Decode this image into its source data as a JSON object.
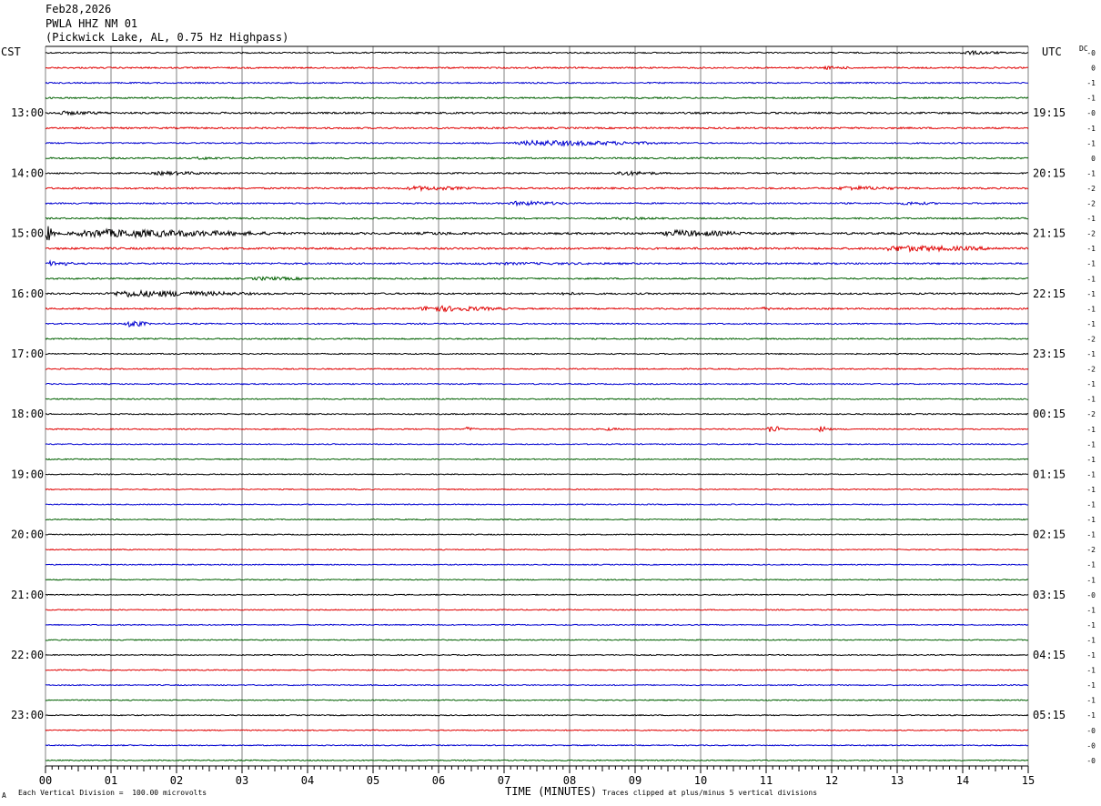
{
  "header": {
    "date": "Feb28,2026",
    "station": "PWLA HHZ NM 01",
    "location": "(Pickwick Lake, AL, 0.75 Hz Highpass)"
  },
  "left_tz": "CST",
  "right_tz": "UTC",
  "dc_label": "DC",
  "footer": {
    "left_marker": "A",
    "scale_note": "Each Vertical Division =  100.00 microvolts",
    "clip_note": "Traces clipped at plus/minus 5 vertical divisions"
  },
  "colors": {
    "trace_cycle": [
      "#000000",
      "#e00000",
      "#0000d0",
      "#006000"
    ],
    "grid": "#808080",
    "axis": "#000000"
  },
  "chart_data": {
    "type": "line",
    "xlabel": "TIME (MINUTES)",
    "xlim": [
      0,
      15
    ],
    "x_ticks": [
      "00",
      "01",
      "02",
      "03",
      "04",
      "05",
      "06",
      "07",
      "08",
      "09",
      "10",
      "11",
      "12",
      "13",
      "14",
      "15"
    ],
    "row_count": 48,
    "row_minutes": 15,
    "left_hour_labels": [
      {
        "row": 4,
        "text": "13:00"
      },
      {
        "row": 8,
        "text": "14:00"
      },
      {
        "row": 12,
        "text": "15:00"
      },
      {
        "row": 16,
        "text": "16:00"
      },
      {
        "row": 20,
        "text": "17:00"
      },
      {
        "row": 24,
        "text": "18:00"
      },
      {
        "row": 28,
        "text": "19:00"
      },
      {
        "row": 32,
        "text": "20:00"
      },
      {
        "row": 36,
        "text": "21:00"
      },
      {
        "row": 40,
        "text": "22:00"
      },
      {
        "row": 44,
        "text": "23:00"
      }
    ],
    "right_hour_labels": [
      {
        "row": 4,
        "text": "19:15"
      },
      {
        "row": 8,
        "text": "20:15"
      },
      {
        "row": 12,
        "text": "21:15"
      },
      {
        "row": 16,
        "text": "22:15"
      },
      {
        "row": 20,
        "text": "23:15"
      },
      {
        "row": 24,
        "text": "00:15"
      },
      {
        "row": 28,
        "text": "01:15"
      },
      {
        "row": 32,
        "text": "02:15"
      },
      {
        "row": 36,
        "text": "03:15"
      },
      {
        "row": 40,
        "text": "04:15"
      },
      {
        "row": 44,
        "text": "05:15"
      }
    ],
    "dc_offsets": [
      "-0",
      "0",
      "-1",
      "-1",
      "-0",
      "-1",
      "-1",
      "0",
      "-1",
      "-2",
      "-2",
      "-1",
      "-2",
      "-1",
      "-1",
      "-1",
      "-1",
      "-1",
      "-1",
      "-2",
      "-1",
      "-2",
      "-1",
      "-1",
      "-2",
      "-1",
      "-1",
      "-1",
      "-1",
      "-1",
      "-1",
      "-1",
      "-1",
      "-2",
      "-1",
      "-1",
      "-0",
      "-1",
      "-1",
      "-1",
      "-1",
      "-1",
      "-1",
      "-1",
      "-1",
      "-0",
      "-0",
      "-0"
    ],
    "noise_levels": [
      0.45,
      0.5,
      0.45,
      0.5,
      0.6,
      0.55,
      0.45,
      0.5,
      0.5,
      0.55,
      0.5,
      0.5,
      0.7,
      0.65,
      0.55,
      0.5,
      0.55,
      0.5,
      0.45,
      0.45,
      0.4,
      0.4,
      0.4,
      0.4,
      0.4,
      0.4,
      0.35,
      0.35,
      0.35,
      0.35,
      0.35,
      0.35,
      0.35,
      0.35,
      0.35,
      0.35,
      0.35,
      0.35,
      0.35,
      0.35,
      0.35,
      0.35,
      0.35,
      0.35,
      0.35,
      0.35,
      0.35,
      0.35
    ],
    "events": [
      {
        "row": 0,
        "start_min": 13.9,
        "end_min": 14.8,
        "amp": 1.6
      },
      {
        "row": 1,
        "start_min": 11.8,
        "end_min": 12.5,
        "amp": 1.3
      },
      {
        "row": 4,
        "start_min": 0.0,
        "end_min": 1.4,
        "amp": 1.5
      },
      {
        "row": 6,
        "start_min": 7.0,
        "end_min": 9.8,
        "amp": 2.2
      },
      {
        "row": 7,
        "start_min": 2.2,
        "end_min": 3.0,
        "amp": 1.2
      },
      {
        "row": 8,
        "start_min": 1.5,
        "end_min": 3.0,
        "amp": 1.5
      },
      {
        "row": 8,
        "start_min": 8.6,
        "end_min": 9.6,
        "amp": 1.8
      },
      {
        "row": 9,
        "start_min": 5.4,
        "end_min": 6.8,
        "amp": 1.8
      },
      {
        "row": 9,
        "start_min": 12.0,
        "end_min": 13.3,
        "amp": 1.8
      },
      {
        "row": 10,
        "start_min": 7.0,
        "end_min": 8.2,
        "amp": 1.8
      },
      {
        "row": 10,
        "start_min": 13.0,
        "end_min": 13.8,
        "amp": 1.4
      },
      {
        "row": 11,
        "start_min": 8.5,
        "end_min": 10.0,
        "amp": 1.0
      },
      {
        "row": 12,
        "start_min": 0.0,
        "end_min": 0.15,
        "amp": 7.0
      },
      {
        "row": 12,
        "start_min": 0.15,
        "end_min": 4.0,
        "amp": 3.2
      },
      {
        "row": 12,
        "start_min": 5.6,
        "end_min": 7.0,
        "amp": 1.3
      },
      {
        "row": 12,
        "start_min": 9.3,
        "end_min": 11.0,
        "amp": 2.6
      },
      {
        "row": 13,
        "start_min": 12.6,
        "end_min": 15.0,
        "amp": 2.4
      },
      {
        "row": 14,
        "start_min": 0.0,
        "end_min": 0.5,
        "amp": 2.2
      },
      {
        "row": 14,
        "start_min": 6.0,
        "end_min": 11.0,
        "amp": 1.0
      },
      {
        "row": 15,
        "start_min": 3.0,
        "end_min": 4.6,
        "amp": 1.4
      },
      {
        "row": 16,
        "start_min": 0.8,
        "end_min": 3.5,
        "amp": 2.6
      },
      {
        "row": 16,
        "start_min": 7.8,
        "end_min": 8.3,
        "amp": 1.5
      },
      {
        "row": 17,
        "start_min": 5.6,
        "end_min": 7.2,
        "amp": 2.4
      },
      {
        "row": 17,
        "start_min": 10.8,
        "end_min": 11.5,
        "amp": 1.3
      },
      {
        "row": 18,
        "start_min": 1.2,
        "end_min": 1.6,
        "amp": 3.0
      },
      {
        "row": 25,
        "start_min": 6.4,
        "end_min": 6.6,
        "amp": 1.8
      },
      {
        "row": 25,
        "start_min": 8.5,
        "end_min": 8.9,
        "amp": 1.2
      },
      {
        "row": 25,
        "start_min": 11.0,
        "end_min": 11.3,
        "amp": 3.0
      },
      {
        "row": 25,
        "start_min": 11.8,
        "end_min": 12.0,
        "amp": 3.0
      }
    ]
  }
}
